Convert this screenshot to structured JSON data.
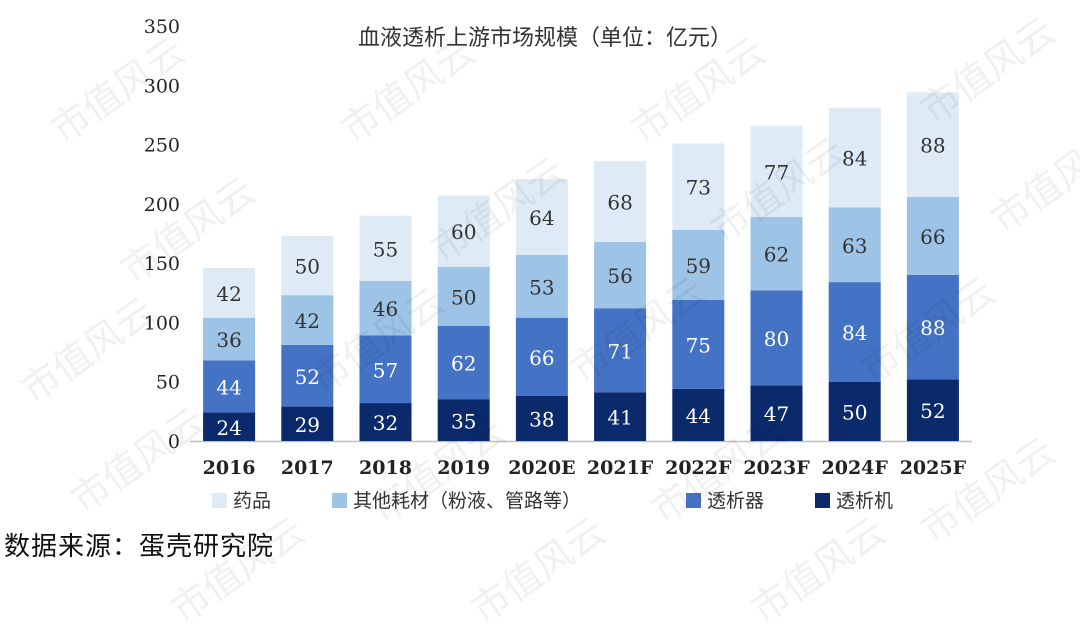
{
  "watermark_text": "市值风云",
  "source_text": "数据来源：蛋壳研究院",
  "chart_data": {
    "type": "bar",
    "stacked": true,
    "title": "血液透析上游市场规模（单位：亿元）",
    "xlabel": "",
    "ylabel": "",
    "ylim": [
      0,
      350
    ],
    "yticks": [
      0,
      50,
      100,
      150,
      200,
      250,
      300,
      350
    ],
    "grid": false,
    "legend_position": "bottom",
    "categories": [
      "2016",
      "2017",
      "2018",
      "2019",
      "2020E",
      "2021F",
      "2022F",
      "2023F",
      "2024F",
      "2025F"
    ],
    "series": [
      {
        "name": "透析机",
        "color": "#0b2a6b",
        "label_color": "#ffffff",
        "values": [
          24,
          29,
          32,
          35,
          38,
          41,
          44,
          47,
          50,
          52
        ]
      },
      {
        "name": "透析器",
        "color": "#4472c4",
        "label_color": "#ffffff",
        "values": [
          44,
          52,
          57,
          62,
          66,
          71,
          75,
          80,
          84,
          88
        ]
      },
      {
        "name": "其他耗材（粉液、管路等）",
        "color": "#9dc3e6",
        "label_color": "#333333",
        "values": [
          36,
          42,
          46,
          50,
          53,
          56,
          59,
          62,
          63,
          66
        ]
      },
      {
        "name": "药品",
        "color": "#deebf7",
        "label_color": "#333333",
        "values": [
          42,
          50,
          55,
          60,
          64,
          68,
          73,
          77,
          84,
          88
        ]
      }
    ],
    "legend_order": [
      3,
      2,
      1,
      0
    ]
  }
}
